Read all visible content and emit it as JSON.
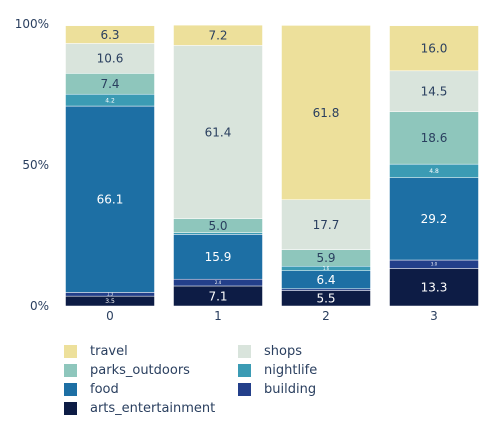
{
  "chart_data": {
    "type": "bar",
    "stacked": true,
    "normalized_percent": true,
    "categories": [
      "0",
      "1",
      "2",
      "3"
    ],
    "y_ticks": [
      "0%",
      "50%",
      "100%"
    ],
    "ylim": [
      0,
      100
    ],
    "grid": false,
    "legend_position": "bottom",
    "series": [
      {
        "name": "arts_entertainment",
        "color": "#0d1c45",
        "values": [
          3.5,
          7.1,
          5.5,
          13.3
        ],
        "labels": [
          "3.5",
          "7.1",
          "5.5",
          "13.3"
        ]
      },
      {
        "name": "building",
        "color": "#233f8a",
        "values": [
          1.3,
          2.4,
          0.6,
          3.0
        ],
        "labels": [
          "1.3",
          "2.4",
          "",
          "3.0"
        ]
      },
      {
        "name": "food",
        "color": "#1d6fa4",
        "values": [
          66.1,
          15.9,
          6.4,
          29.2
        ],
        "labels": [
          "66.1",
          "15.9",
          "6.4",
          "29.2"
        ]
      },
      {
        "name": "nightlife",
        "color": "#3b9bb4",
        "values": [
          4.2,
          0.6,
          1.6,
          4.8
        ],
        "labels": [
          "4.2",
          "",
          "1.6",
          "4.8"
        ]
      },
      {
        "name": "parks_outdoors",
        "color": "#8ec6bc",
        "values": [
          7.4,
          5.0,
          5.9,
          18.6
        ],
        "labels": [
          "7.4",
          "5.0",
          "5.9",
          "18.6"
        ]
      },
      {
        "name": "shops",
        "color": "#d9e4dc",
        "values": [
          10.6,
          61.4,
          17.7,
          14.5
        ],
        "labels": [
          "10.6",
          "61.4",
          "17.7",
          "14.5"
        ]
      },
      {
        "name": "travel",
        "color": "#ede09b",
        "values": [
          6.3,
          7.2,
          61.8,
          16.0
        ],
        "labels": [
          "6.3",
          "7.2",
          "61.8",
          "16.0"
        ]
      }
    ],
    "legend_order": [
      "travel",
      "shops",
      "parks_outdoors",
      "nightlife",
      "food",
      "building",
      "arts_entertainment"
    ],
    "text_color": "#2a3f5f"
  }
}
